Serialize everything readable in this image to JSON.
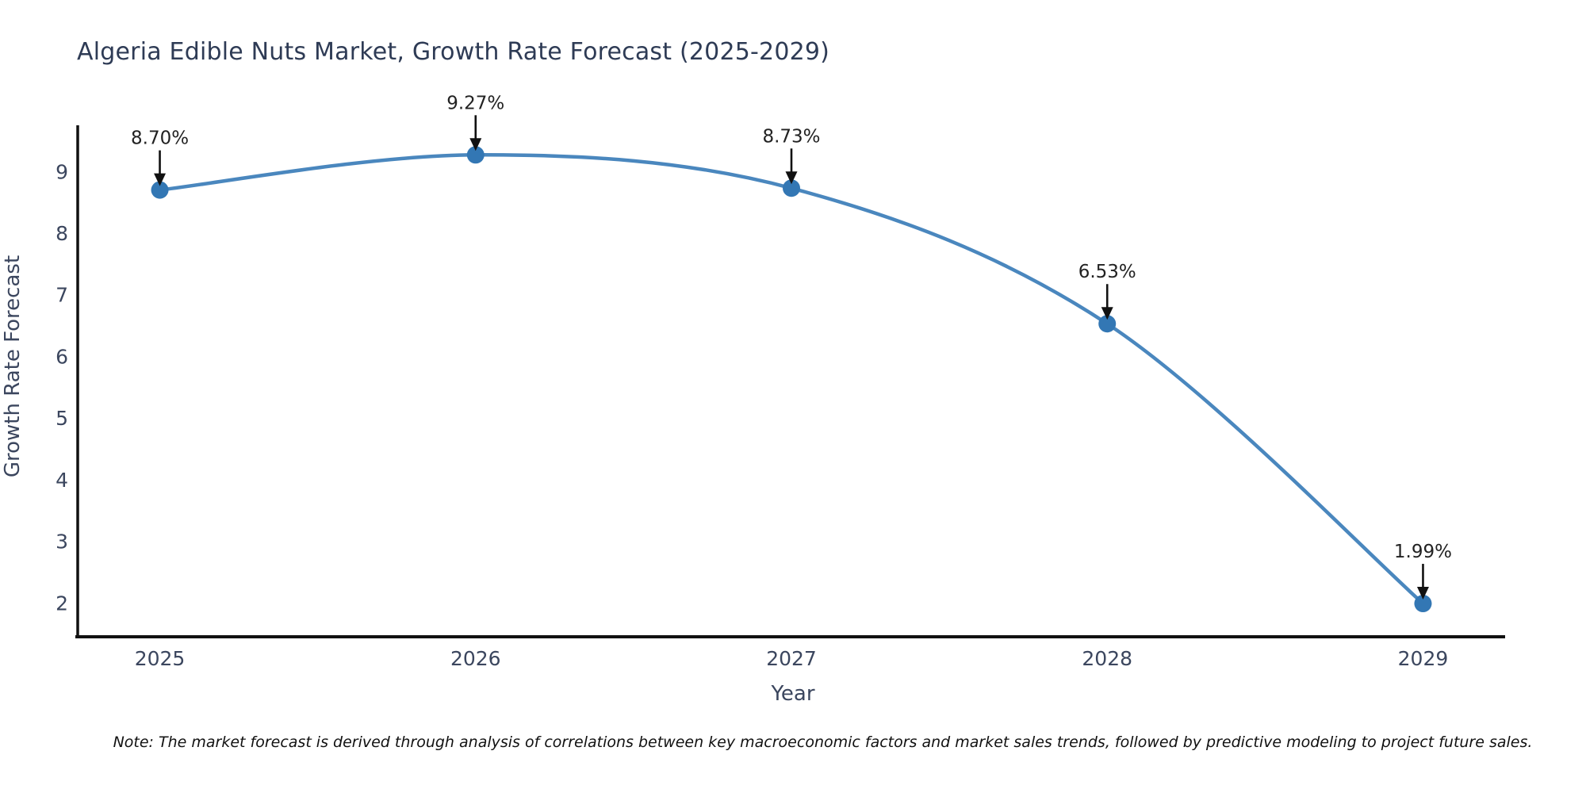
{
  "title": "Algeria Edible Nuts Market, Growth Rate Forecast (2025-2029)",
  "note": "Note: The market forecast is derived through analysis of correlations between key macroeconomic factors and market sales trends, followed by predictive modeling to project future sales.",
  "chart_data": {
    "type": "line",
    "title": "Algeria Edible Nuts Market, Growth Rate Forecast (2025-2029)",
    "xlabel": "Year",
    "ylabel": "Growth Rate Forecast",
    "x": [
      2025,
      2026,
      2027,
      2028,
      2029
    ],
    "xticks": [
      "2025",
      "2026",
      "2027",
      "2028",
      "2029"
    ],
    "yticks": [
      2,
      3,
      4,
      5,
      6,
      7,
      8,
      9
    ],
    "ylim": [
      1.45,
      9.75
    ],
    "xlim": [
      2024.74,
      2029.26
    ],
    "grid": false,
    "legend_position": "none",
    "series": [
      {
        "name": "Growth Rate Forecast",
        "values": [
          8.7,
          9.27,
          8.73,
          6.53,
          1.99
        ],
        "point_labels": [
          "8.70%",
          "9.27%",
          "8.73%",
          "6.53%",
          "1.99%"
        ],
        "marker": "circle",
        "smooth": true
      }
    ],
    "annotation_style": "black-down-arrow-above-point",
    "colors": {
      "line": "#4a87be",
      "marker": "#3377b4",
      "axis": "#111111",
      "tick_label": "#3b465e",
      "title": "#2e3b55",
      "annotation_text": "#222222",
      "annotation_arrow": "#111111",
      "background": "#ffffff"
    }
  }
}
